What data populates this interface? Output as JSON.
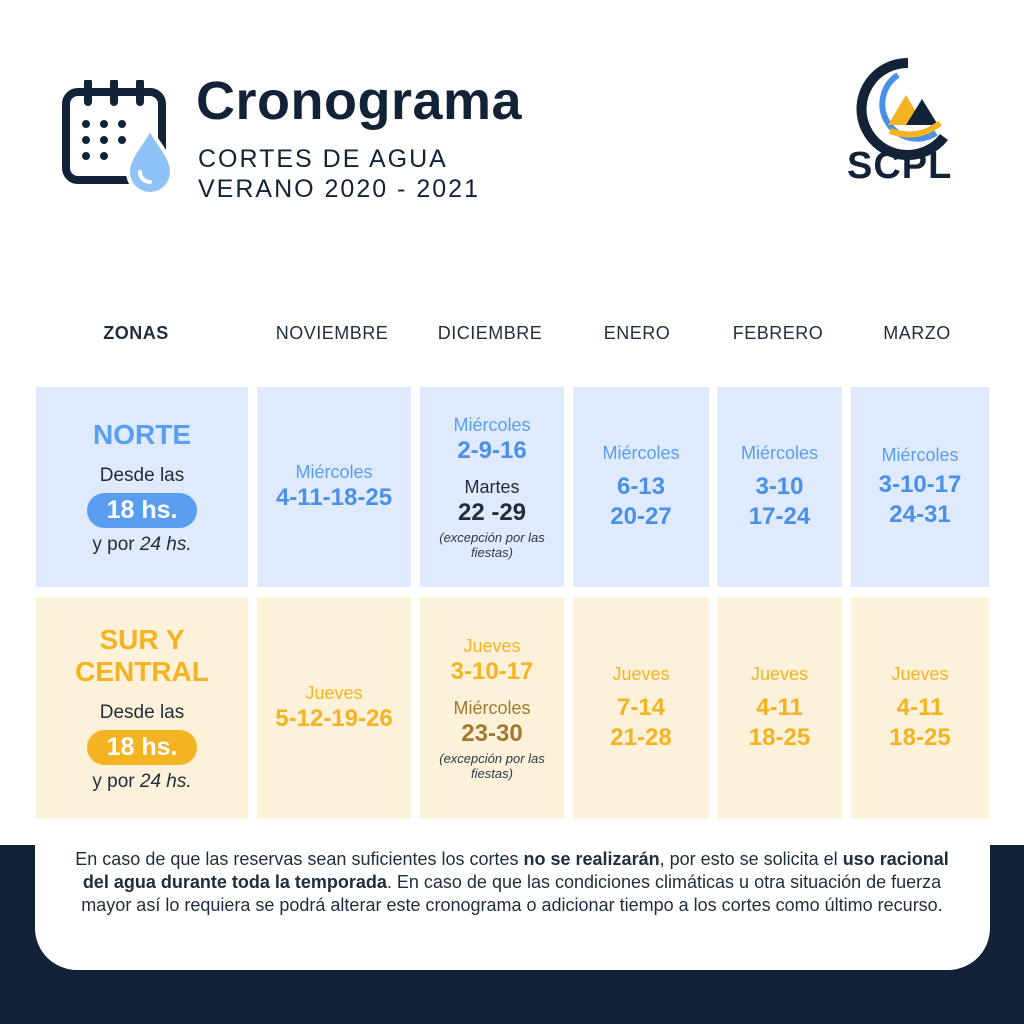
{
  "header": {
    "title": "Cronograma",
    "subtitle_line1": "CORTES DE AGUA",
    "subtitle_line2": "VERANO 2020 - 2021",
    "logo_text": "SCPL"
  },
  "columns": [
    "ZONAS",
    "NOVIEMBRE",
    "DICIEMBRE",
    "ENERO",
    "FEBRERO",
    "MARZO"
  ],
  "norte": {
    "name": "NORTE",
    "desde": "Desde las",
    "hour": "18 hs.",
    "ypor": "y por",
    "duration": "24 hs.",
    "noviembre": {
      "day": "Miércoles",
      "dates": "4-11-18-25"
    },
    "diciembre": {
      "day1": "Miércoles",
      "dates1": "2-9-16",
      "day2": "Martes",
      "dates2": "22 -29",
      "note": "(excepción por las fiestas)"
    },
    "enero": {
      "day": "Miércoles",
      "dates1": "6-13",
      "dates2": "20-27"
    },
    "febrero": {
      "day": "Miércoles",
      "dates1": "3-10",
      "dates2": "17-24"
    },
    "marzo": {
      "day": "Miércoles",
      "dates1": "3-10-17",
      "dates2": "24-31"
    }
  },
  "sur": {
    "name_line1": "SUR Y",
    "name_line2": "CENTRAL",
    "desde": "Desde las",
    "hour": "18 hs.",
    "ypor": "y por",
    "duration": "24 hs.",
    "noviembre": {
      "day": "Jueves",
      "dates": "5-12-19-26"
    },
    "diciembre": {
      "day1": "Jueves",
      "dates1": "3-10-17",
      "day2": "Miércoles",
      "dates2": "23-30",
      "note": "(excepción por las fiestas)"
    },
    "enero": {
      "day": "Jueves",
      "dates1": "7-14",
      "dates2": "21-28"
    },
    "febrero": {
      "day": "Jueves",
      "dates1": "4-11",
      "dates2": "18-25"
    },
    "marzo": {
      "day": "Jueves",
      "dates1": "4-11",
      "dates2": "18-25"
    }
  },
  "footer": {
    "t1": "En caso de que las reservas sean suficientes los cortes ",
    "b1": "no se realizarán",
    "t2": ", por esto se solicita el ",
    "b2": "uso racional del agua durante toda la temporada",
    "t3": ". En caso de que las condiciones climáticas u otra situación de fuerza mayor así lo requiera se podrá alterar este cronograma o adicionar tiempo a los cortes como último recurso."
  },
  "colors": {
    "navy": "#132337",
    "blue": "#5a9ef1",
    "yellow": "#f4b321",
    "blue_bg": "#dfeafd",
    "yellow_bg": "#fdf2d9"
  }
}
